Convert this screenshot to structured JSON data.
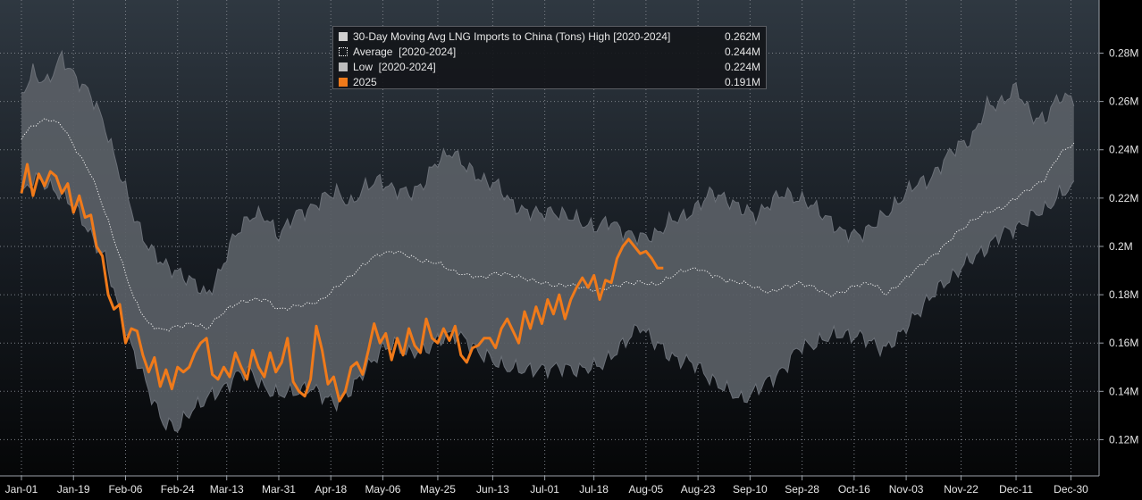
{
  "chart_data": {
    "type": "area",
    "title": "30-Day Moving Avg LNG Imports to China (Tons)",
    "x_tick_labels": [
      "Jan-01",
      "Jan-19",
      "Feb-06",
      "Feb-24",
      "Mar-13",
      "Mar-31",
      "Apr-18",
      "May-06",
      "May-25",
      "Jun-13",
      "Jul-01",
      "Jul-18",
      "Aug-05",
      "Aug-23",
      "Sep-10",
      "Sep-28",
      "Oct-16",
      "Nov-03",
      "Nov-22",
      "Dec-11",
      "Dec-30"
    ],
    "x_tick_days": [
      1,
      19,
      37,
      55,
      72,
      90,
      108,
      126,
      145,
      164,
      182,
      199,
      217,
      235,
      253,
      271,
      289,
      307,
      326,
      345,
      364
    ],
    "xlim": [
      1,
      366
    ],
    "y_tick_values": [
      0.12,
      0.14,
      0.16,
      0.18,
      0.2,
      0.22,
      0.24,
      0.26,
      0.28
    ],
    "y_tick_labels": [
      "0.12M",
      "0.14M",
      "0.16M",
      "0.18M",
      "0.2M",
      "0.22M",
      "0.24M",
      "0.26M",
      "0.28M"
    ],
    "ylim": [
      0.105,
      0.302
    ],
    "unit": "million tons",
    "grid": true,
    "legend_position": "top-center",
    "legend": [
      {
        "label": "30-Day Moving Avg LNG Imports to China (Tons) High [2020-2024]",
        "value": "0.262M",
        "color": "#cfcfcf",
        "style": "solid"
      },
      {
        "label": "Average  [2020-2024]",
        "value": "0.244M",
        "color": "#ffffff",
        "style": "dotted"
      },
      {
        "label": "Low  [2020-2024]",
        "value": "0.224M",
        "color": "#bdbdbd",
        "style": "solid"
      },
      {
        "label": "2025",
        "value": "0.191M",
        "color": "#f07a1a",
        "style": "solid"
      }
    ],
    "series": [
      {
        "name": "High [2020-2024]",
        "x": [
          1,
          5,
          10,
          15,
          20,
          25,
          30,
          35,
          40,
          45,
          50,
          55,
          60,
          65,
          70,
          75,
          80,
          85,
          90,
          95,
          100,
          105,
          110,
          115,
          120,
          125,
          130,
          135,
          140,
          145,
          150,
          155,
          160,
          165,
          170,
          175,
          180,
          185,
          190,
          195,
          200,
          205,
          210,
          215,
          220,
          225,
          230,
          235,
          240,
          245,
          250,
          255,
          260,
          265,
          270,
          275,
          280,
          285,
          290,
          295,
          300,
          305,
          310,
          315,
          320,
          325,
          330,
          335,
          340,
          345,
          350,
          355,
          360,
          366
        ],
        "values": [
          0.262,
          0.272,
          0.268,
          0.278,
          0.27,
          0.262,
          0.25,
          0.23,
          0.212,
          0.2,
          0.192,
          0.19,
          0.185,
          0.18,
          0.19,
          0.205,
          0.213,
          0.212,
          0.205,
          0.212,
          0.215,
          0.22,
          0.222,
          0.218,
          0.224,
          0.228,
          0.223,
          0.222,
          0.226,
          0.235,
          0.24,
          0.232,
          0.228,
          0.226,
          0.218,
          0.215,
          0.213,
          0.215,
          0.212,
          0.21,
          0.208,
          0.21,
          0.206,
          0.203,
          0.205,
          0.21,
          0.212,
          0.217,
          0.222,
          0.22,
          0.215,
          0.213,
          0.218,
          0.222,
          0.22,
          0.216,
          0.212,
          0.205,
          0.205,
          0.208,
          0.213,
          0.22,
          0.225,
          0.228,
          0.235,
          0.242,
          0.245,
          0.258,
          0.26,
          0.265,
          0.255,
          0.252,
          0.262,
          0.262
        ]
      },
      {
        "name": "Average [2020-2024]",
        "x": [
          1,
          5,
          10,
          15,
          20,
          25,
          30,
          35,
          40,
          45,
          50,
          55,
          60,
          65,
          70,
          75,
          80,
          85,
          90,
          95,
          100,
          105,
          110,
          115,
          120,
          125,
          130,
          135,
          140,
          145,
          150,
          155,
          160,
          165,
          170,
          175,
          180,
          185,
          190,
          195,
          200,
          205,
          210,
          215,
          220,
          225,
          230,
          235,
          240,
          245,
          250,
          255,
          260,
          265,
          270,
          275,
          280,
          285,
          290,
          295,
          300,
          305,
          310,
          315,
          320,
          325,
          330,
          335,
          340,
          345,
          350,
          355,
          360,
          366
        ],
        "values": [
          0.245,
          0.25,
          0.253,
          0.25,
          0.24,
          0.23,
          0.214,
          0.196,
          0.178,
          0.168,
          0.165,
          0.167,
          0.168,
          0.166,
          0.172,
          0.176,
          0.178,
          0.178,
          0.174,
          0.175,
          0.176,
          0.178,
          0.183,
          0.188,
          0.193,
          0.197,
          0.198,
          0.196,
          0.194,
          0.193,
          0.19,
          0.188,
          0.187,
          0.189,
          0.188,
          0.187,
          0.185,
          0.184,
          0.184,
          0.183,
          0.182,
          0.183,
          0.185,
          0.185,
          0.184,
          0.187,
          0.19,
          0.191,
          0.188,
          0.186,
          0.185,
          0.183,
          0.181,
          0.183,
          0.185,
          0.183,
          0.18,
          0.181,
          0.184,
          0.185,
          0.18,
          0.185,
          0.19,
          0.195,
          0.2,
          0.206,
          0.211,
          0.214,
          0.216,
          0.22,
          0.224,
          0.228,
          0.238,
          0.244
        ]
      },
      {
        "name": "Low [2020-2024]",
        "x": [
          1,
          5,
          10,
          15,
          20,
          25,
          30,
          35,
          40,
          45,
          50,
          55,
          60,
          65,
          70,
          75,
          80,
          85,
          90,
          95,
          100,
          105,
          110,
          115,
          120,
          125,
          130,
          135,
          140,
          145,
          150,
          155,
          160,
          165,
          170,
          175,
          180,
          185,
          190,
          195,
          200,
          205,
          210,
          215,
          220,
          225,
          230,
          235,
          240,
          245,
          250,
          255,
          260,
          265,
          270,
          275,
          280,
          285,
          290,
          295,
          300,
          305,
          310,
          315,
          320,
          325,
          330,
          335,
          340,
          345,
          350,
          355,
          360,
          366
        ],
        "values": [
          0.222,
          0.228,
          0.225,
          0.222,
          0.215,
          0.205,
          0.195,
          0.172,
          0.156,
          0.14,
          0.128,
          0.124,
          0.133,
          0.137,
          0.14,
          0.147,
          0.148,
          0.142,
          0.138,
          0.14,
          0.142,
          0.138,
          0.136,
          0.14,
          0.15,
          0.156,
          0.16,
          0.156,
          0.156,
          0.162,
          0.163,
          0.162,
          0.155,
          0.152,
          0.15,
          0.148,
          0.15,
          0.149,
          0.15,
          0.149,
          0.15,
          0.155,
          0.16,
          0.168,
          0.16,
          0.155,
          0.153,
          0.15,
          0.145,
          0.14,
          0.137,
          0.14,
          0.145,
          0.15,
          0.158,
          0.16,
          0.162,
          0.164,
          0.163,
          0.16,
          0.158,
          0.163,
          0.172,
          0.178,
          0.185,
          0.19,
          0.195,
          0.2,
          0.205,
          0.208,
          0.212,
          0.215,
          0.222,
          0.224
        ]
      },
      {
        "name": "2025",
        "x": [
          1,
          3,
          5,
          7,
          9,
          11,
          13,
          15,
          17,
          19,
          21,
          23,
          25,
          27,
          29,
          31,
          33,
          35,
          37,
          39,
          41,
          43,
          45,
          47,
          49,
          51,
          53,
          55,
          57,
          59,
          61,
          63,
          65,
          67,
          69,
          71,
          73,
          75,
          77,
          79,
          81,
          83,
          85,
          87,
          89,
          91,
          93,
          95,
          97,
          99,
          101,
          103,
          105,
          107,
          109,
          111,
          113,
          115,
          117,
          119,
          121,
          123,
          125,
          127,
          129,
          131,
          133,
          135,
          137,
          139,
          141,
          143,
          145,
          147,
          149,
          151,
          153,
          155,
          157,
          159,
          161,
          163,
          165,
          167,
          169,
          171,
          173,
          175,
          177,
          179,
          181,
          183,
          185,
          187,
          189,
          191,
          193,
          195,
          197,
          199,
          201,
          203,
          205,
          207,
          209,
          211,
          213,
          215,
          217,
          219,
          221,
          223
        ],
        "values": [
          0.222,
          0.234,
          0.221,
          0.23,
          0.225,
          0.231,
          0.229,
          0.222,
          0.226,
          0.214,
          0.221,
          0.212,
          0.213,
          0.2,
          0.196,
          0.18,
          0.174,
          0.176,
          0.16,
          0.166,
          0.165,
          0.155,
          0.148,
          0.154,
          0.142,
          0.149,
          0.141,
          0.15,
          0.148,
          0.15,
          0.156,
          0.16,
          0.162,
          0.147,
          0.145,
          0.15,
          0.146,
          0.156,
          0.15,
          0.145,
          0.157,
          0.15,
          0.146,
          0.156,
          0.148,
          0.152,
          0.162,
          0.144,
          0.14,
          0.138,
          0.145,
          0.167,
          0.157,
          0.143,
          0.146,
          0.136,
          0.14,
          0.15,
          0.152,
          0.147,
          0.157,
          0.168,
          0.16,
          0.164,
          0.153,
          0.162,
          0.155,
          0.166,
          0.159,
          0.156,
          0.17,
          0.162,
          0.16,
          0.166,
          0.161,
          0.167,
          0.155,
          0.152,
          0.158,
          0.159,
          0.162,
          0.162,
          0.158,
          0.166,
          0.17,
          0.165,
          0.16,
          0.173,
          0.166,
          0.175,
          0.168,
          0.178,
          0.172,
          0.18,
          0.17,
          0.178,
          0.183,
          0.187,
          0.183,
          0.188,
          0.178,
          0.186,
          0.185,
          0.195,
          0.2,
          0.203,
          0.2,
          0.197,
          0.198,
          0.195,
          0.191,
          0.191
        ]
      }
    ]
  }
}
